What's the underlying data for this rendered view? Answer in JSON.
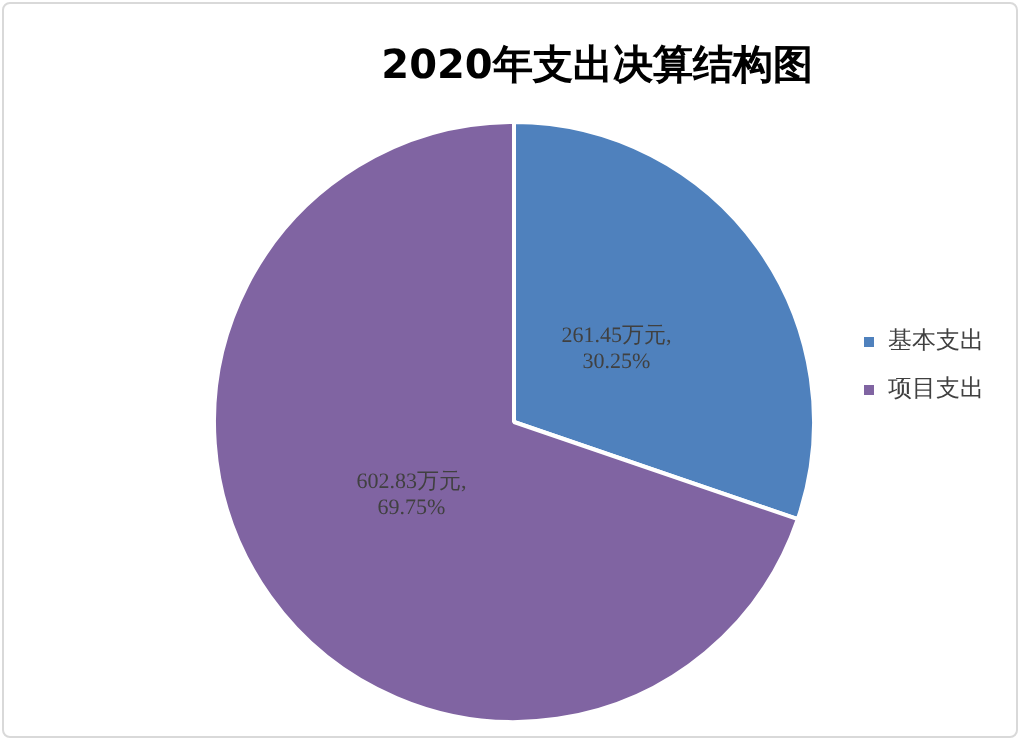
{
  "chart_data": {
    "type": "pie",
    "title": "2020年支出决算结构图",
    "categories": [
      "基本支出",
      "项目支出"
    ],
    "values": [
      261.45,
      602.83
    ],
    "colors": [
      "#4f81bd",
      "#8064a2"
    ],
    "value_labels": [
      "261.45万元,\n30.25%",
      "602.83万元,\n69.75%"
    ],
    "legend": "right"
  }
}
